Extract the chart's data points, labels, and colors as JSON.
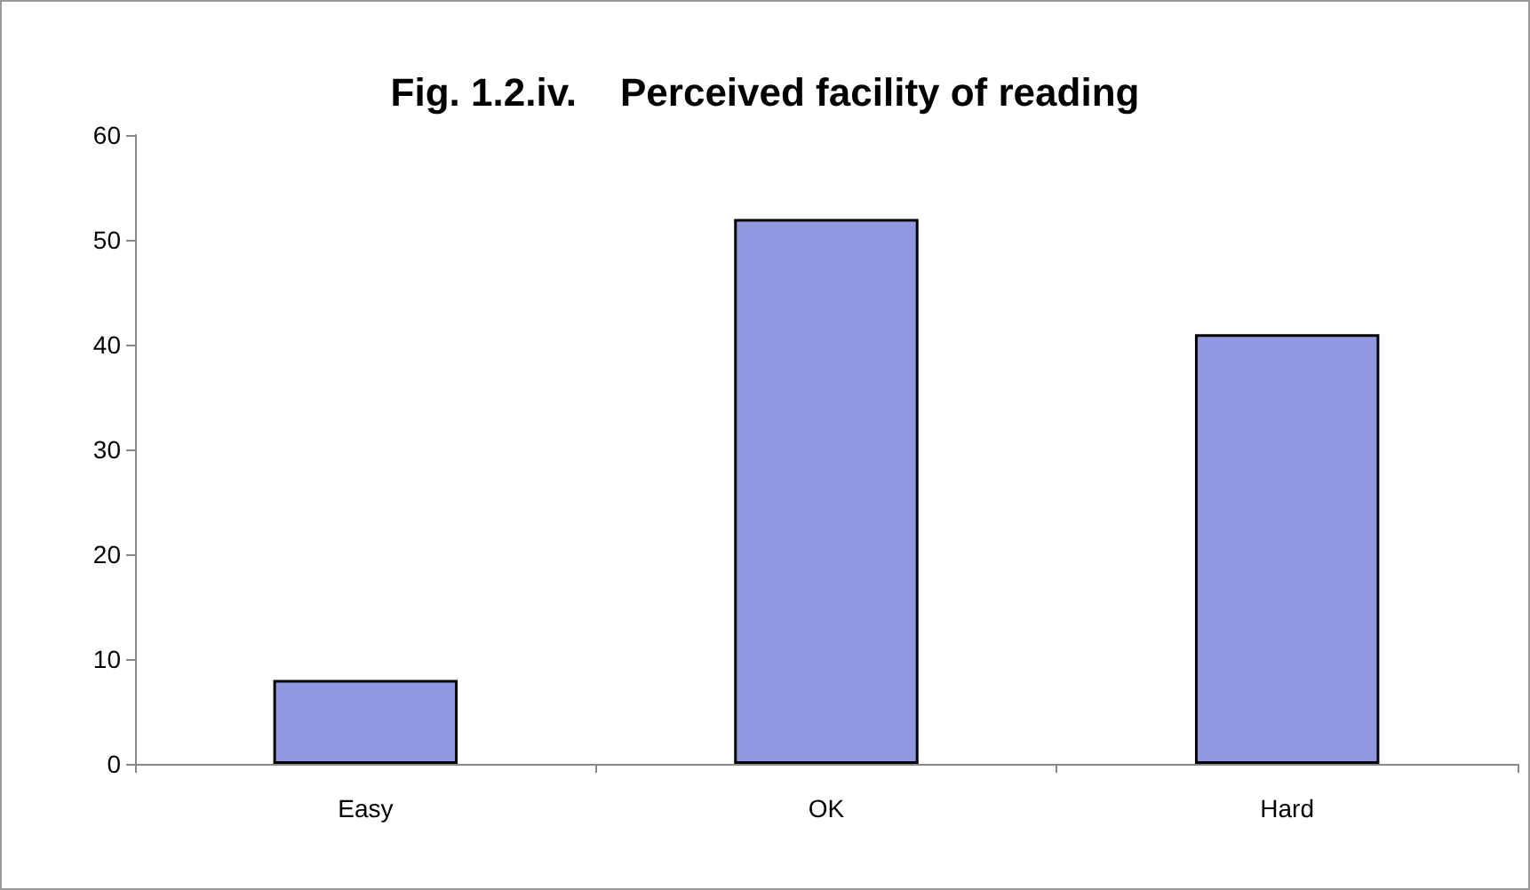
{
  "chart_data": {
    "type": "bar",
    "title": "Fig. 1.2.iv.    Perceived facility of reading",
    "categories": [
      "Easy",
      "OK",
      "Hard"
    ],
    "values": [
      8,
      52,
      41
    ],
    "color": "#8f98e0",
    "ylim": [
      0,
      60
    ],
    "yticks": [
      0,
      10,
      20,
      30,
      40,
      50,
      60
    ],
    "grid": false
  }
}
